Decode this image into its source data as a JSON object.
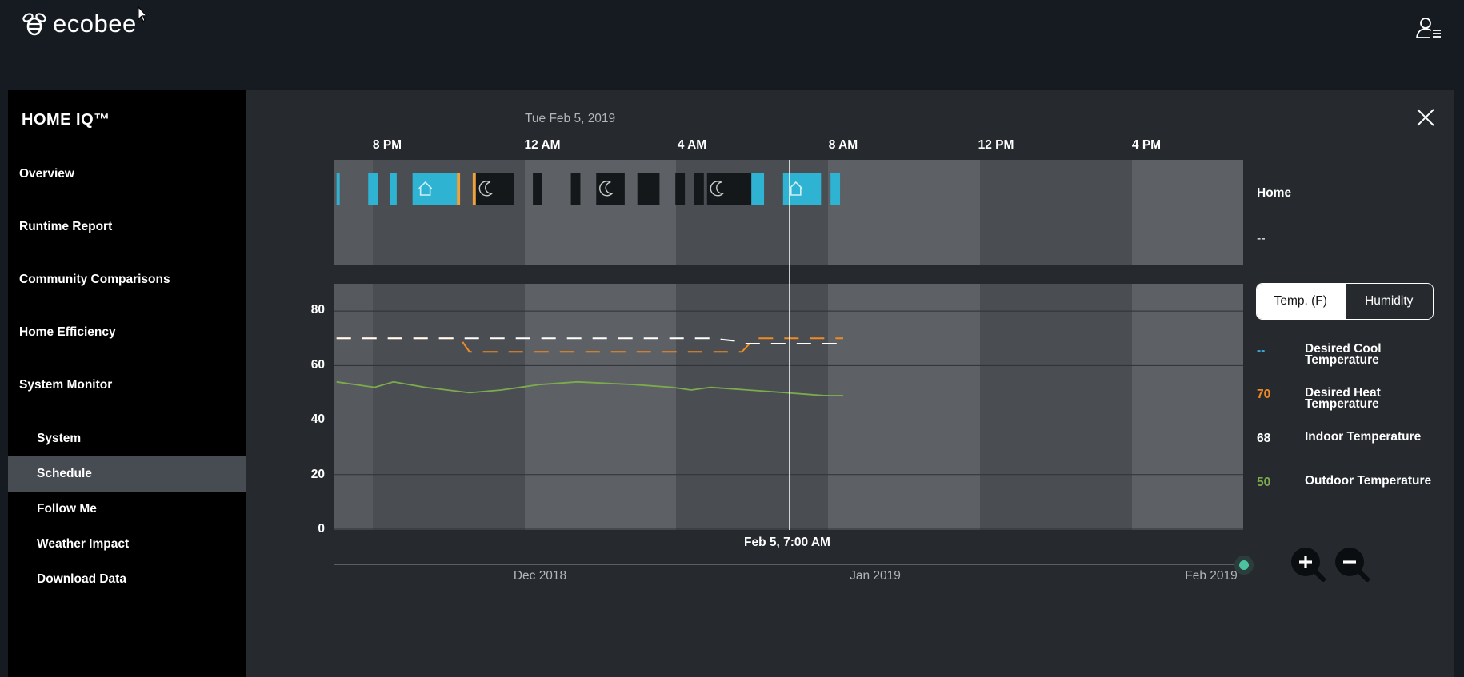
{
  "app": {
    "logo_text": "ecobee"
  },
  "sidebar": {
    "title": "HOME IQ™",
    "items": [
      {
        "label": "Overview"
      },
      {
        "label": "Runtime Report"
      },
      {
        "label": "Community Comparisons"
      },
      {
        "label": "Home Efficiency"
      },
      {
        "label": "System Monitor"
      }
    ],
    "sub_items": [
      {
        "label": "System"
      },
      {
        "label": "Schedule",
        "active": true
      },
      {
        "label": "Follow Me"
      },
      {
        "label": "Weather Impact"
      },
      {
        "label": "Download Data"
      }
    ]
  },
  "chart_header": {
    "date": "Tue Feb 5, 2019",
    "time_ticks": [
      "8 PM",
      "12 AM",
      "4 AM",
      "8 AM",
      "12 PM",
      "4 PM"
    ]
  },
  "y_axis": {
    "ticks": [
      "80",
      "60",
      "40",
      "20",
      "0"
    ]
  },
  "cursor": {
    "label": "Feb 5, 7:00 AM"
  },
  "timeline": {
    "labels": [
      "Dec 2018",
      "Jan 2019",
      "Feb 2019"
    ]
  },
  "side_panel": {
    "comfort_label": "Home",
    "comfort_value": "--",
    "toggle": {
      "temp_label": "Temp. (F)",
      "humidity_label": "Humidity",
      "selected": "temp"
    },
    "legend": [
      {
        "value": "--",
        "name": "Desired Cool Temperature",
        "color": "#3aa8d8"
      },
      {
        "value": "70",
        "name": "Desired Heat Temperature",
        "color": "#f08a24"
      },
      {
        "value": "68",
        "name": "Indoor Temperature",
        "color": "#ffffff"
      },
      {
        "value": "50",
        "name": "Outdoor Temperature",
        "color": "#7cab4e"
      }
    ]
  },
  "chart_data": {
    "type": "line",
    "title": "",
    "x_axis": {
      "type": "time",
      "ticks": [
        "8 PM",
        "12 AM",
        "4 AM",
        "8 AM",
        "12 PM",
        "4 PM"
      ]
    },
    "ylim": [
      0,
      90
    ],
    "yticks": [
      0,
      20,
      40,
      60,
      80
    ],
    "grid": true,
    "cursor_time": "Feb 5, 7:00 AM",
    "series": [
      {
        "name": "Desired Heat Temperature",
        "color": "#f08a24",
        "x": [
          "6:40 PM",
          "9:55 PM",
          "10:10 PM",
          "5:20 AM",
          "5:40 AM",
          "8:00 AM"
        ],
        "y": [
          70,
          70,
          65,
          65,
          70,
          70
        ]
      },
      {
        "name": "Indoor Temperature",
        "color": "#ffffff",
        "x": [
          "6:40 PM",
          "10:00 PM",
          "10:30 PM",
          "4:30 AM",
          "5:10 AM",
          "5:20 AM",
          "8:00 AM"
        ],
        "y": [
          70,
          70,
          70,
          70,
          69,
          68,
          68
        ]
      },
      {
        "name": "Outdoor Temperature",
        "color": "#7cab4e",
        "x": [
          "6:40 PM",
          "7:40 PM",
          "8:10 PM",
          "9:00 PM",
          "10:10 PM",
          "11:00 PM",
          "12:00 AM",
          "1:00 AM",
          "2:30 AM",
          "3:30 AM",
          "4:00 AM",
          "4:30 AM",
          "5:30 AM",
          "6:30 AM",
          "7:30 AM",
          "8:00 AM"
        ],
        "y": [
          54,
          52,
          54,
          52,
          50,
          51,
          53,
          54,
          53,
          52,
          51,
          52,
          51,
          50,
          49,
          49
        ]
      }
    ],
    "schedule_blocks": [
      {
        "mode": "home",
        "start": "6:40 PM",
        "end": "6:45 PM"
      },
      {
        "mode": "home",
        "start": "7:30 PM",
        "end": "7:45 PM"
      },
      {
        "mode": "home",
        "start": "8:05 PM",
        "end": "8:15 PM"
      },
      {
        "mode": "home",
        "start": "8:40 PM",
        "end": "9:50 PM"
      },
      {
        "mode": "away",
        "start": "9:50 PM",
        "end": "9:55 PM"
      },
      {
        "mode": "away",
        "start": "10:15 PM",
        "end": "10:20 PM"
      },
      {
        "mode": "sleep",
        "start": "10:20 PM",
        "end": "11:20 PM"
      },
      {
        "mode": "sleep",
        "start": "11:50 PM",
        "end": "12:05 AM"
      },
      {
        "mode": "sleep",
        "start": "12:50 AM",
        "end": "1:05 AM"
      },
      {
        "mode": "sleep",
        "start": "1:30 AM",
        "end": "2:15 AM"
      },
      {
        "mode": "sleep",
        "start": "2:35 AM",
        "end": "3:10 AM"
      },
      {
        "mode": "sleep",
        "start": "3:35 AM",
        "end": "3:50 AM"
      },
      {
        "mode": "sleep",
        "start": "4:05 AM",
        "end": "4:20 AM"
      },
      {
        "mode": "sleep",
        "start": "4:25 AM",
        "end": "5:35 AM"
      },
      {
        "mode": "home",
        "start": "5:35 AM",
        "end": "5:55 AM"
      },
      {
        "mode": "home",
        "start": "6:25 AM",
        "end": "7:25 AM"
      },
      {
        "mode": "home",
        "start": "7:40 AM",
        "end": "7:55 AM"
      }
    ]
  }
}
